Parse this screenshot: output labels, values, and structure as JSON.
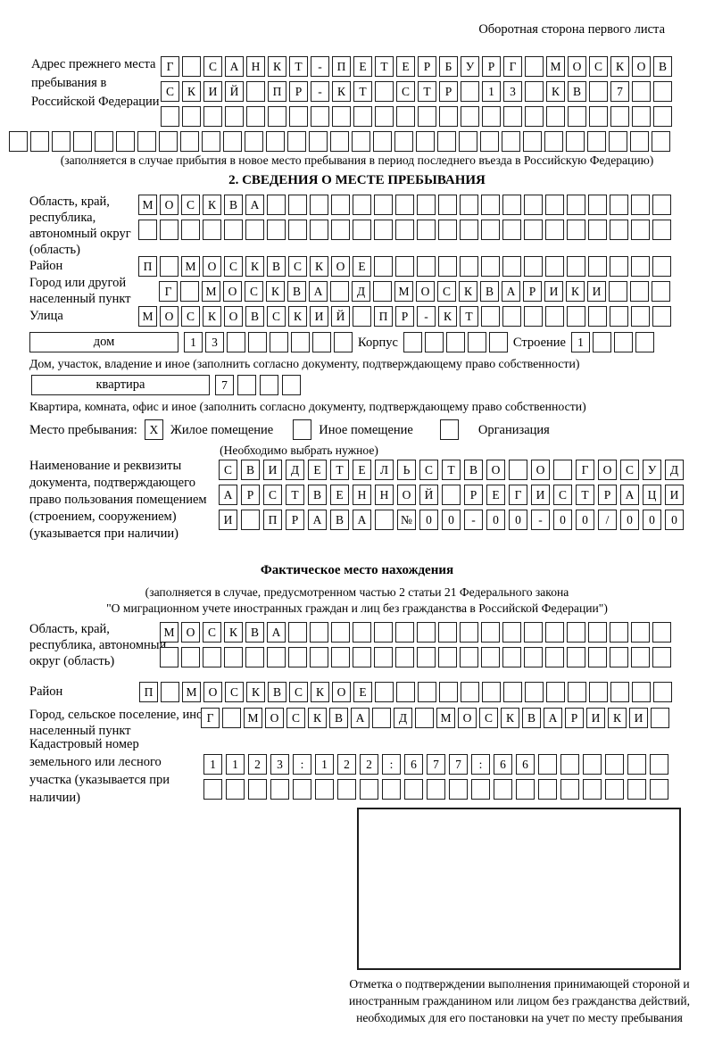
{
  "page_header": "Оборотная сторона первого листа",
  "prev_address": {
    "label": "Адрес прежнего места пребывания в Российской Федерации",
    "row1": [
      "Г",
      "",
      "С",
      "А",
      "Н",
      "К",
      "Т",
      "-",
      "П",
      "Е",
      "Т",
      "Е",
      "Р",
      "Б",
      "У",
      "Р",
      "Г",
      "",
      "М",
      "О",
      "С",
      "К",
      "О",
      "В"
    ],
    "row2": [
      "С",
      "К",
      "И",
      "Й",
      "",
      "П",
      "Р",
      "-",
      "К",
      "Т",
      "",
      "С",
      "Т",
      "Р",
      "",
      "1",
      "3",
      "",
      "К",
      "В",
      "",
      "7",
      "",
      ""
    ],
    "row3": [
      "",
      "",
      "",
      "",
      "",
      "",
      "",
      "",
      "",
      "",
      "",
      "",
      "",
      "",
      "",
      "",
      "",
      "",
      "",
      "",
      "",
      "",
      "",
      ""
    ],
    "row_full": [
      "",
      "",
      "",
      "",
      "",
      "",
      "",
      "",
      "",
      "",
      "",
      "",
      "",
      "",
      "",
      "",
      "",
      "",
      "",
      "",
      "",
      "",
      "",
      "",
      "",
      "",
      "",
      "",
      "",
      "",
      ""
    ],
    "note": "(заполняется в случае прибытия в новое место пребывания в период последнего въезда в Российскую Федерацию)"
  },
  "section2": {
    "title": "2. СВЕДЕНИЯ О МЕСТЕ ПРЕБЫВАНИЯ",
    "region": {
      "label": "Область, край, республика, автономный округ (область)",
      "row1": [
        "М",
        "О",
        "С",
        "К",
        "В",
        "А",
        "",
        "",
        "",
        "",
        "",
        "",
        "",
        "",
        "",
        "",
        "",
        "",
        "",
        "",
        "",
        "",
        "",
        "",
        ""
      ],
      "row2": [
        "",
        "",
        "",
        "",
        "",
        "",
        "",
        "",
        "",
        "",
        "",
        "",
        "",
        "",
        "",
        "",
        "",
        "",
        "",
        "",
        "",
        "",
        "",
        "",
        ""
      ]
    },
    "district": {
      "label": "Район",
      "cells": [
        "П",
        "",
        "М",
        "О",
        "С",
        "К",
        "В",
        "С",
        "К",
        "О",
        "Е",
        "",
        "",
        "",
        "",
        "",
        "",
        "",
        "",
        "",
        "",
        "",
        "",
        "",
        ""
      ]
    },
    "city": {
      "label": "Город или другой населенный пункт",
      "cells": [
        "Г",
        "",
        "М",
        "О",
        "С",
        "К",
        "В",
        "А",
        "",
        "Д",
        "",
        "М",
        "О",
        "С",
        "К",
        "В",
        "А",
        "Р",
        "И",
        "К",
        "И",
        "",
        "",
        ""
      ]
    },
    "street": {
      "label": "Улица",
      "cells": [
        "М",
        "О",
        "С",
        "К",
        "О",
        "В",
        "С",
        "К",
        "И",
        "Й",
        "",
        "П",
        "Р",
        "-",
        "К",
        "Т",
        "",
        "",
        "",
        "",
        "",
        "",
        "",
        "",
        ""
      ]
    },
    "house": {
      "box_label": "дом",
      "cells": [
        "1",
        "3",
        "",
        "",
        "",
        "",
        "",
        ""
      ],
      "korpus_label": "Корпус",
      "korpus_cells": [
        "",
        "",
        "",
        "",
        ""
      ],
      "stroenie_label": "Строение",
      "stroenie_cells": [
        "1",
        "",
        "",
        ""
      ],
      "note": "Дом, участок, владение и иное (заполнить согласно документу, подтверждающему право собственности)"
    },
    "apartment": {
      "box_label": "квартира",
      "cells": [
        "7",
        "",
        "",
        ""
      ],
      "note": "Квартира, комната, офис и иное (заполнить согласно документу, подтверждающему право собственности)"
    },
    "stay": {
      "label": "Место пребывания:",
      "options": [
        {
          "label": "Жилое помещение",
          "cells": [
            "X"
          ]
        },
        {
          "label": "Иное помещение",
          "cells": [
            ""
          ]
        },
        {
          "label": "Организация",
          "cells": [
            ""
          ]
        }
      ],
      "note": "(Необходимо выбрать нужное)"
    },
    "document": {
      "label": "Наименование и реквизиты документа, подтверждающего право пользования помещением (строением, сооружением) (указывается при наличии)",
      "row1": [
        "С",
        "В",
        "И",
        "Д",
        "Е",
        "Т",
        "Е",
        "Л",
        "Ь",
        "С",
        "Т",
        "В",
        "О",
        "",
        "О",
        "",
        "Г",
        "О",
        "С",
        "У",
        "Д"
      ],
      "row2": [
        "А",
        "Р",
        "С",
        "Т",
        "В",
        "Е",
        "Н",
        "Н",
        "О",
        "Й",
        "",
        "Р",
        "Е",
        "Г",
        "И",
        "С",
        "Т",
        "Р",
        "А",
        "Ц",
        "И"
      ],
      "row3": [
        "И",
        "",
        "П",
        "Р",
        "А",
        "В",
        "А",
        "",
        "№",
        "0",
        "0",
        "-",
        "0",
        "0",
        "-",
        "0",
        "0",
        "/",
        "0",
        "0",
        "0"
      ]
    }
  },
  "actual_location": {
    "title": "Фактическое место нахождения",
    "note1": "(заполняется в случае, предусмотренном частью 2 статьи 21 Федерального закона",
    "note2": "\"О миграционном учете иностранных граждан и лиц без гражданства в Российской Федерации\")",
    "region": {
      "label": "Область, край, республика, автономный округ (область)",
      "row1": [
        "М",
        "О",
        "С",
        "К",
        "В",
        "А",
        "",
        "",
        "",
        "",
        "",
        "",
        "",
        "",
        "",
        "",
        "",
        "",
        "",
        "",
        "",
        "",
        "",
        ""
      ],
      "row2": [
        "",
        "",
        "",
        "",
        "",
        "",
        "",
        "",
        "",
        "",
        "",
        "",
        "",
        "",
        "",
        "",
        "",
        "",
        "",
        "",
        "",
        "",
        "",
        ""
      ]
    },
    "district": {
      "label": "Район",
      "cells": [
        "П",
        "",
        "М",
        "О",
        "С",
        "К",
        "В",
        "С",
        "К",
        "О",
        "Е",
        "",
        "",
        "",
        "",
        "",
        "",
        "",
        "",
        "",
        "",
        "",
        "",
        "",
        ""
      ]
    },
    "city": {
      "label": "Город, сельское поселение, иной населенный пункт",
      "cells": [
        "Г",
        "",
        "М",
        "О",
        "С",
        "К",
        "В",
        "А",
        "",
        "Д",
        "",
        "М",
        "О",
        "С",
        "К",
        "В",
        "А",
        "Р",
        "И",
        "К",
        "И",
        ""
      ]
    },
    "cadastral": {
      "label": "Кадастровый номер земельного или лесного участка (указывается при наличии)",
      "row1": [
        "1",
        "1",
        "2",
        "3",
        ":",
        "1",
        "2",
        "2",
        ":",
        "6",
        "7",
        "7",
        ":",
        "6",
        "6",
        "",
        "",
        "",
        "",
        "",
        ""
      ],
      "row2": [
        "",
        "",
        "",
        "",
        "",
        "",
        "",
        "",
        "",
        "",
        "",
        "",
        "",
        "",
        "",
        "",
        "",
        "",
        "",
        "",
        ""
      ]
    }
  },
  "stamp": {
    "caption": "Отметка о подтверждении выполнения принимающей стороной и иностранным гражданином или лицом без гражданства действий, необходимых для его постановки на учет по месту пребывания"
  }
}
